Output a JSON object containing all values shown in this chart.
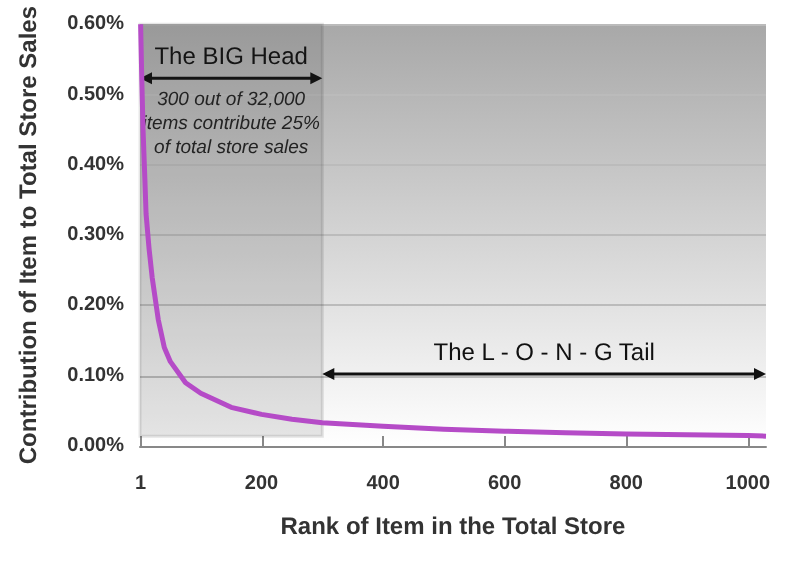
{
  "chart_data": {
    "type": "line",
    "xlabel": "Rank of Item in the Total Store",
    "ylabel": "Contribution of Item to Total Store Sales",
    "x": [
      1,
      3,
      5,
      8,
      10,
      15,
      20,
      30,
      40,
      50,
      75,
      100,
      150,
      200,
      250,
      300,
      400,
      500,
      600,
      700,
      800,
      900,
      1000,
      1030
    ],
    "series": [
      {
        "color": "#b54bc7",
        "values": [
          0.6,
          0.52,
          0.45,
          0.38,
          0.33,
          0.28,
          0.24,
          0.18,
          0.14,
          0.12,
          0.09,
          0.075,
          0.055,
          0.045,
          0.038,
          0.033,
          0.028,
          0.024,
          0.021,
          0.019,
          0.017,
          0.016,
          0.015,
          0.014
        ]
      }
    ],
    "xlim": [
      0,
      1030
    ],
    "xticks": [
      1,
      200,
      400,
      600,
      800,
      1000
    ],
    "ylim": [
      0,
      0.6
    ],
    "yticks": [
      {
        "value": 0,
        "label": "0.00%"
      },
      {
        "value": 0.1,
        "label": "0.10%"
      },
      {
        "value": 0.2,
        "label": "0.20%"
      },
      {
        "value": 0.3,
        "label": "0.30%"
      },
      {
        "value": 0.4,
        "label": "0.40%"
      },
      {
        "value": 0.5,
        "label": "0.50%"
      },
      {
        "value": 0.6,
        "label": "0.60%"
      }
    ],
    "grid": "y",
    "marker": "none",
    "line_style": "solid",
    "bands": [
      {
        "axis": "x",
        "from": 0,
        "to": 300,
        "color": "#333333"
      }
    ],
    "annotations": [
      "The BIG Head",
      "300 out of 32,000\nitems contribute 25%\nof total store sales",
      "The L - O - N - G Tail"
    ]
  }
}
